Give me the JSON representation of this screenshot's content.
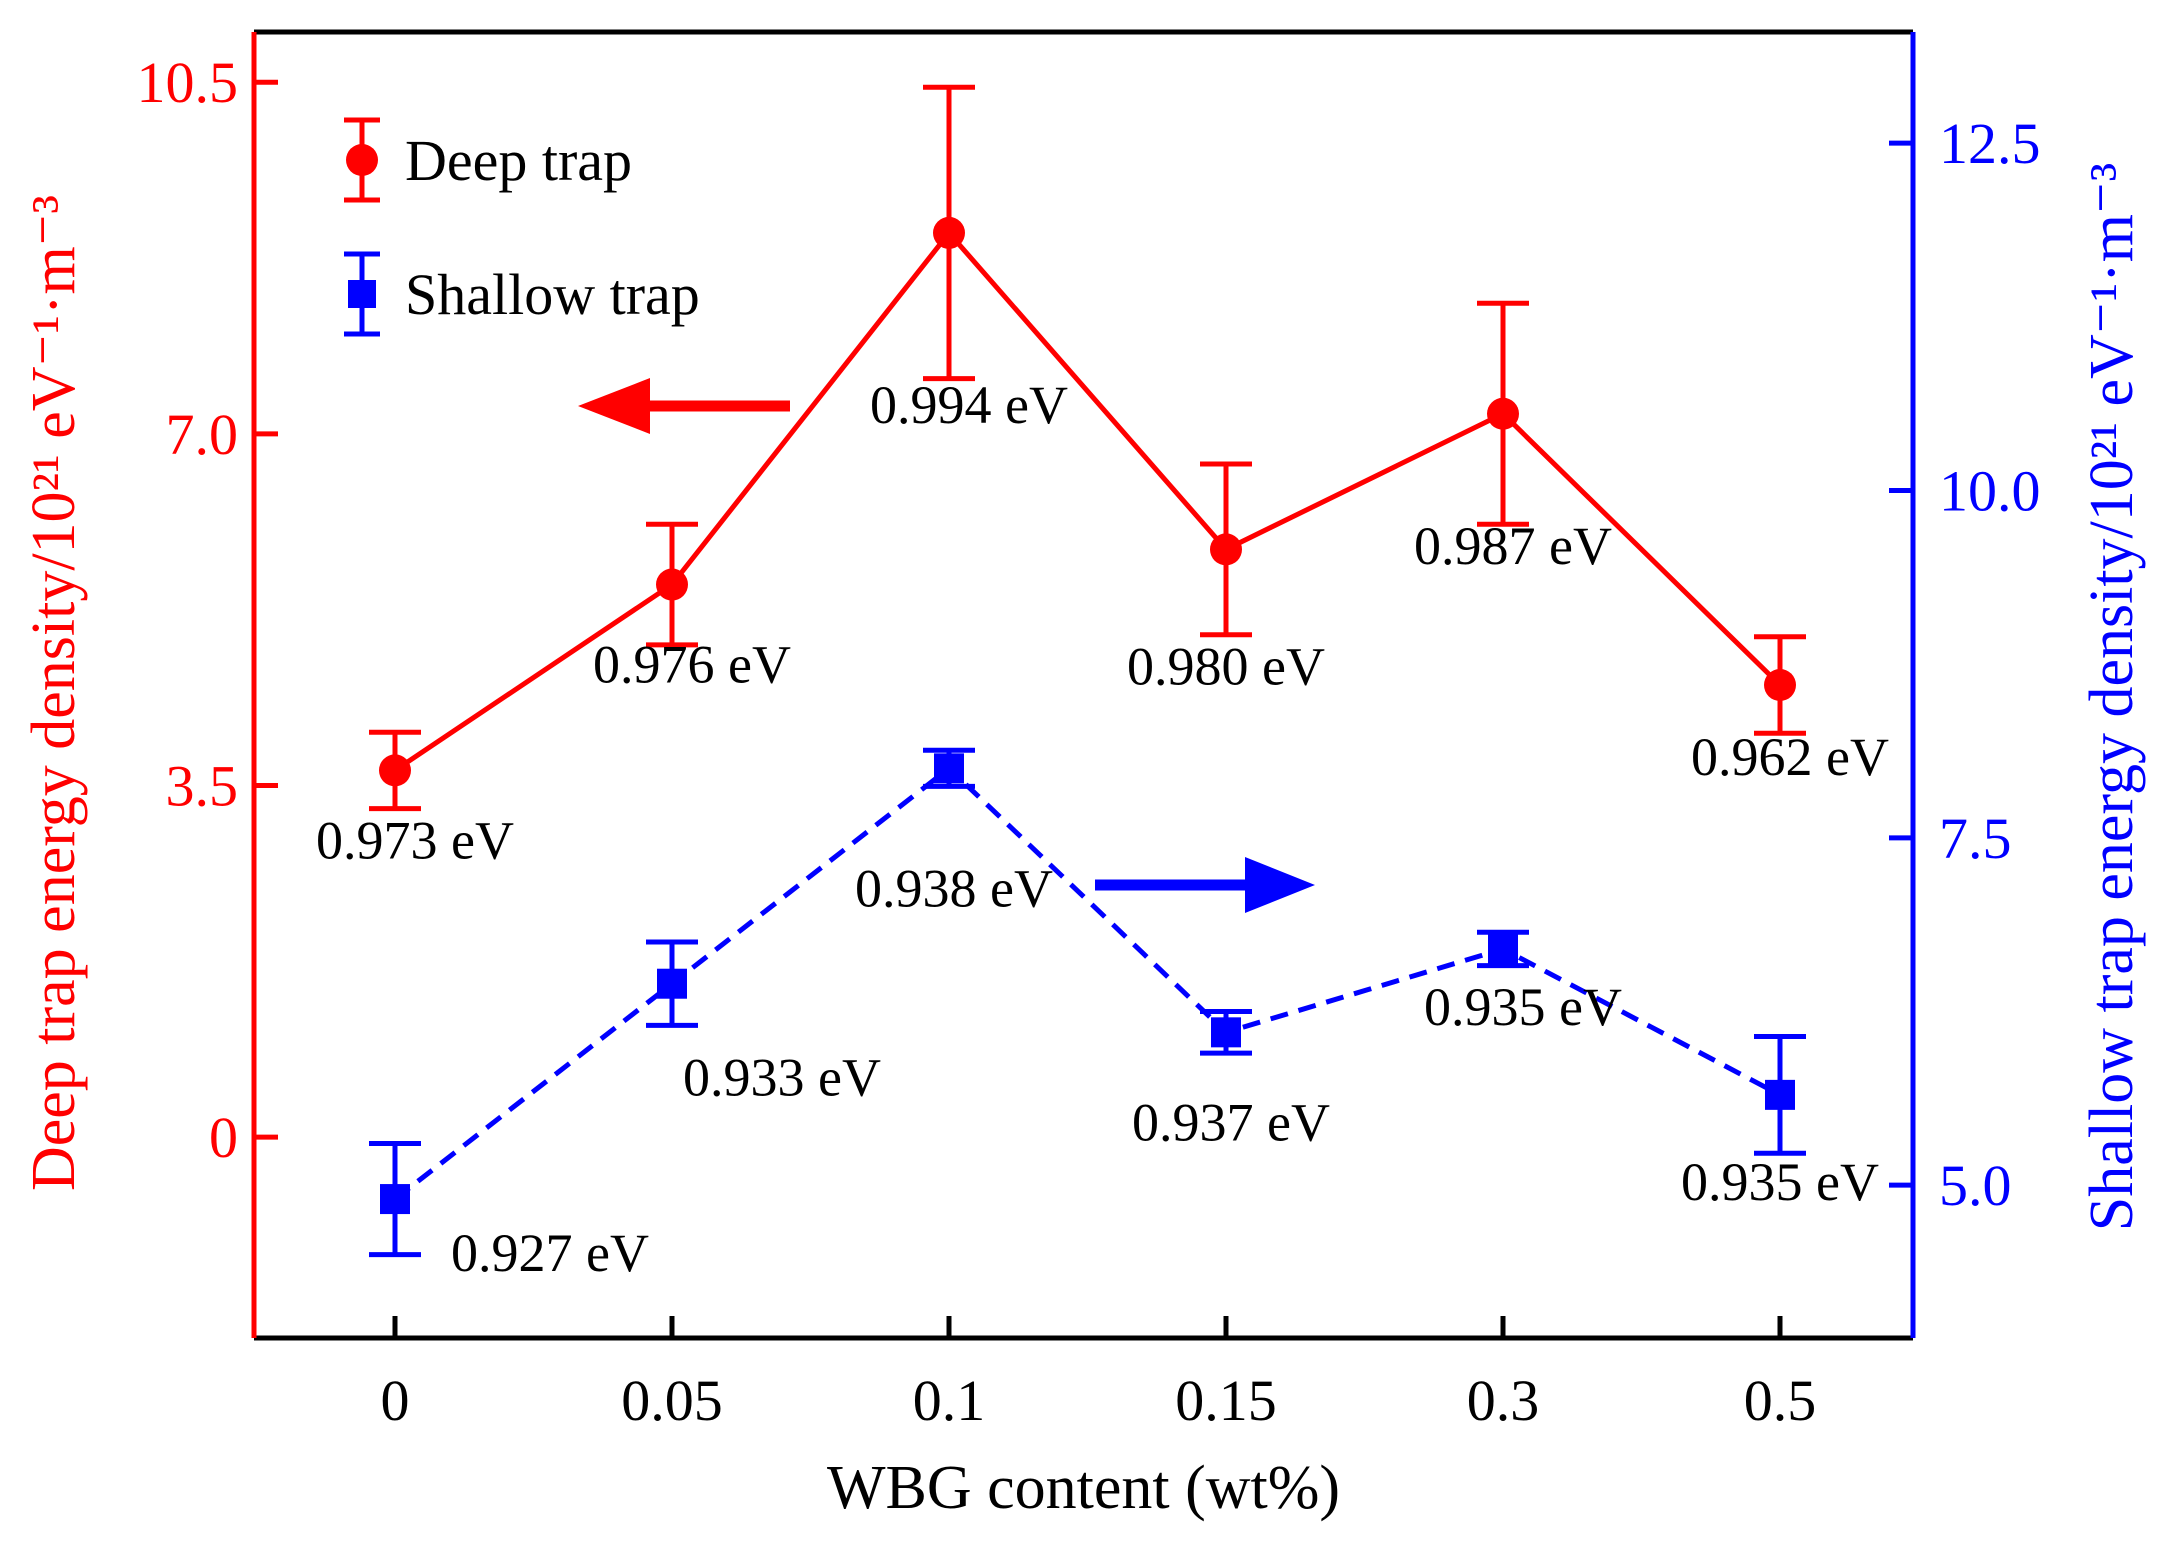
{
  "chart_data": {
    "type": "line",
    "categories": [
      "0",
      "0.05",
      "0.1",
      "0.15",
      "0.3",
      "0.5"
    ],
    "xlabel": "WBG content (wt%)",
    "left_axis": {
      "label": "Deep trap energy density/10²¹ eV⁻¹·m⁻³",
      "ylim": [
        -2.0,
        11.0
      ],
      "ticks": [
        0,
        3.5,
        7.0,
        10.5
      ],
      "tick_labels": [
        "0",
        "3.5",
        "7.0",
        "10.5"
      ],
      "color": "#ff0000"
    },
    "right_axis": {
      "label": "Shallow trap energy density/10²¹ eV⁻¹·m⁻³",
      "ylim": [
        3.9,
        13.3
      ],
      "ticks": [
        5.0,
        7.5,
        10.0,
        12.5
      ],
      "tick_labels": [
        "5.0",
        "7.5",
        "10.0",
        "12.5"
      ],
      "color": "#0000ff"
    },
    "series": [
      {
        "name": "Deep trap",
        "axis": "left",
        "marker": "circle",
        "line": "solid",
        "color": "#ff0000",
        "values": [
          3.65,
          5.5,
          9.0,
          5.85,
          7.2,
          4.5
        ],
        "errors": [
          0.38,
          0.6,
          1.45,
          0.85,
          1.1,
          0.48
        ],
        "annotations": [
          "0.973 eV",
          "0.976 eV",
          "0.994 eV",
          "0.980 eV",
          "0.987 eV",
          "0.962 eV"
        ]
      },
      {
        "name": "Shallow trap",
        "axis": "right",
        "marker": "square",
        "line": "dashed",
        "color": "#0000ff",
        "values": [
          4.9,
          6.45,
          8.0,
          6.1,
          6.7,
          5.65
        ],
        "errors": [
          0.4,
          0.3,
          0.13,
          0.15,
          0.12,
          0.42
        ],
        "annotations": [
          "0.927 eV",
          "0.933 eV",
          "0.938 eV",
          "0.937 eV",
          "0.935 eV",
          "0.935 eV"
        ]
      }
    ],
    "arrows": [
      {
        "series": "Deep trap",
        "direction": "left"
      },
      {
        "series": "Shallow trap",
        "direction": "right"
      }
    ],
    "legend_position": "top-left"
  }
}
